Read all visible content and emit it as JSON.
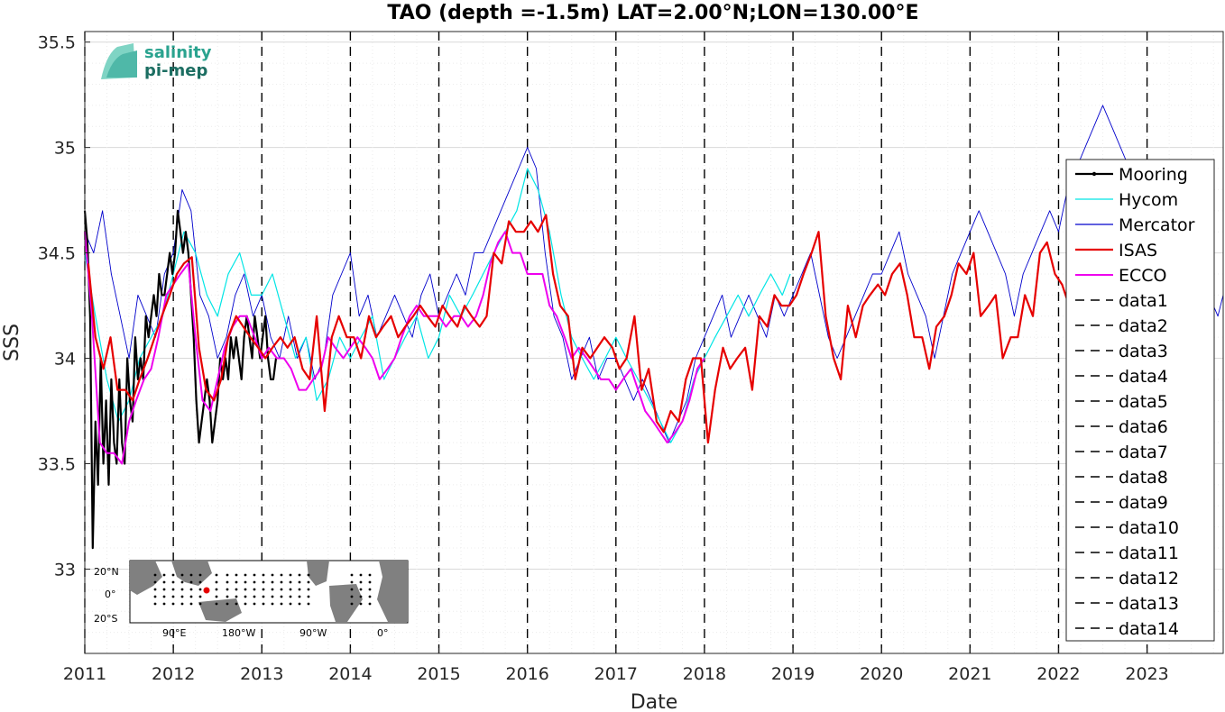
{
  "chart_data": {
    "type": "line",
    "title": "TAO (depth =-1.5m) LAT=2.00°N;LON=130.00°E",
    "xlabel": "Date",
    "ylabel": "SSS",
    "xlim": [
      2011.0,
      2023.86
    ],
    "ylim": [
      32.6,
      35.55
    ],
    "grid": "on",
    "legend_position": "right",
    "x_ticks": [
      2011,
      2012,
      2013,
      2014,
      2015,
      2016,
      2017,
      2018,
      2019,
      2020,
      2021,
      2022,
      2023
    ],
    "x_tick_labels": [
      "2011",
      "2012",
      "2013",
      "2014",
      "2015",
      "2016",
      "2017",
      "2018",
      "2019",
      "2020",
      "2021",
      "2022",
      "2023"
    ],
    "y_ticks": [
      33,
      33.5,
      34,
      34.5,
      35,
      35.5
    ],
    "y_tick_labels": [
      "33",
      "33.5",
      "34",
      "34.5",
      "35",
      "35.5"
    ],
    "vertical_lines": [
      2011,
      2012,
      2013,
      2014,
      2015,
      2016,
      2017,
      2018,
      2019,
      2020,
      2021,
      2022,
      2023
    ],
    "series": [
      {
        "name": "Mooring",
        "color": "#000000",
        "width": 2.2,
        "x": [
          2011.0,
          2011.03,
          2011.06,
          2011.09,
          2011.12,
          2011.15,
          2011.18,
          2011.21,
          2011.24,
          2011.27,
          2011.3,
          2011.33,
          2011.36,
          2011.39,
          2011.42,
          2011.45,
          2011.48,
          2011.51,
          2011.54,
          2011.57,
          2011.6,
          2011.63,
          2011.66,
          2011.69,
          2011.72,
          2011.75,
          2011.78,
          2011.81,
          2011.84,
          2011.87,
          2011.9,
          2011.93,
          2011.96,
          2011.99,
          2012.02,
          2012.05,
          2012.08,
          2012.11,
          2012.14,
          2012.17,
          2012.2,
          2012.23,
          2012.26,
          2012.29,
          2012.32,
          2012.35,
          2012.38,
          2012.41,
          2012.44,
          2012.47,
          2012.5,
          2012.53,
          2012.56,
          2012.59,
          2012.62,
          2012.65,
          2012.68,
          2012.71,
          2012.74,
          2012.77,
          2012.8,
          2012.83,
          2012.86,
          2012.89,
          2012.92,
          2012.95,
          2012.98,
          2013.01,
          2013.04,
          2013.07,
          2013.1,
          2013.13,
          2013.16
        ],
        "y": [
          34.7,
          34.55,
          34.2,
          33.1,
          33.7,
          33.4,
          34.0,
          33.5,
          33.8,
          33.4,
          33.9,
          33.6,
          33.5,
          33.9,
          33.6,
          33.5,
          34.0,
          33.8,
          33.7,
          34.1,
          33.9,
          34.0,
          33.9,
          34.2,
          34.1,
          34.2,
          34.3,
          34.2,
          34.4,
          34.3,
          34.3,
          34.4,
          34.5,
          34.4,
          34.5,
          34.7,
          34.6,
          34.5,
          34.6,
          34.5,
          34.3,
          34.1,
          33.8,
          33.6,
          33.7,
          33.8,
          33.9,
          33.8,
          33.6,
          33.7,
          33.8,
          34.0,
          33.9,
          34.0,
          33.9,
          34.1,
          34.0,
          34.1,
          34.0,
          33.9,
          34.1,
          34.2,
          34.1,
          34.0,
          34.2,
          34.1,
          34.0,
          34.1,
          34.2,
          34.0,
          33.9,
          33.9,
          34.0
        ]
      },
      {
        "name": "Hycom",
        "color": "#00e5e5",
        "width": 1.2,
        "x": [
          2011.0,
          2011.12,
          2011.25,
          2011.38,
          2011.5,
          2011.62,
          2011.75,
          2011.88,
          2012.0,
          2012.12,
          2012.25,
          2012.38,
          2012.5,
          2012.62,
          2012.75,
          2012.88,
          2013.0,
          2013.12,
          2013.25,
          2013.38,
          2013.5,
          2013.62,
          2013.75,
          2013.88,
          2014.0,
          2014.12,
          2014.25,
          2014.38,
          2014.5,
          2014.62,
          2014.75,
          2014.88,
          2015.0,
          2015.12,
          2015.25,
          2015.38,
          2015.5,
          2015.62,
          2015.75,
          2015.88,
          2016.0,
          2016.12,
          2016.25,
          2016.38,
          2016.5,
          2016.62,
          2016.75,
          2016.88,
          2017.0,
          2017.12,
          2017.25,
          2017.38,
          2017.5,
          2017.62,
          2017.75,
          2017.88,
          2018.0,
          2018.12,
          2018.25,
          2018.38,
          2018.5,
          2018.62,
          2018.75,
          2018.88,
          2018.97
        ],
        "y": [
          34.5,
          34.2,
          33.9,
          33.7,
          33.8,
          34.0,
          34.1,
          34.2,
          34.4,
          34.6,
          34.5,
          34.3,
          34.2,
          34.4,
          34.5,
          34.3,
          34.3,
          34.4,
          34.2,
          34.0,
          34.1,
          33.8,
          33.9,
          34.1,
          34.0,
          34.1,
          34.2,
          33.9,
          34.0,
          34.1,
          34.2,
          34.0,
          34.1,
          34.3,
          34.2,
          34.3,
          34.4,
          34.5,
          34.6,
          34.7,
          34.9,
          34.8,
          34.6,
          34.3,
          34.1,
          34.0,
          33.9,
          34.0,
          34.1,
          34.0,
          33.9,
          33.8,
          33.7,
          33.6,
          33.7,
          33.9,
          34.0,
          34.1,
          34.2,
          34.3,
          34.2,
          34.3,
          34.4,
          34.3,
          34.4
        ]
      },
      {
        "name": "Mercator",
        "color": "#0000cc",
        "width": 0.9,
        "x": [
          2011.0,
          2011.1,
          2011.2,
          2011.3,
          2011.4,
          2011.5,
          2011.6,
          2011.7,
          2011.8,
          2011.9,
          2012.0,
          2012.1,
          2012.2,
          2012.3,
          2012.4,
          2012.5,
          2012.6,
          2012.7,
          2012.8,
          2012.9,
          2013.0,
          2013.1,
          2013.2,
          2013.3,
          2013.4,
          2013.5,
          2013.6,
          2013.7,
          2013.8,
          2013.9,
          2014.0,
          2014.1,
          2014.2,
          2014.3,
          2014.4,
          2014.5,
          2014.6,
          2014.7,
          2014.8,
          2014.9,
          2015.0,
          2015.1,
          2015.2,
          2015.3,
          2015.4,
          2015.5,
          2015.6,
          2015.7,
          2015.8,
          2015.9,
          2016.0,
          2016.1,
          2016.2,
          2016.3,
          2016.4,
          2016.5,
          2016.6,
          2016.7,
          2016.8,
          2016.9,
          2017.0,
          2017.1,
          2017.2,
          2017.3,
          2017.4,
          2017.5,
          2017.6,
          2017.7,
          2017.8,
          2017.9,
          2018.0,
          2018.1,
          2018.2,
          2018.3,
          2018.4,
          2018.5,
          2018.6,
          2018.7,
          2018.8,
          2018.9,
          2019.0,
          2019.1,
          2019.2,
          2019.3,
          2019.4,
          2019.5,
          2019.6,
          2019.7,
          2019.8,
          2019.9,
          2020.0,
          2020.1,
          2020.2,
          2020.3,
          2020.4,
          2020.5,
          2020.6,
          2020.7,
          2020.8,
          2020.9,
          2021.0,
          2021.1,
          2021.2,
          2021.3,
          2021.4,
          2021.5,
          2021.6,
          2021.7,
          2021.8,
          2021.9,
          2022.0,
          2022.1,
          2022.2,
          2022.3,
          2022.4,
          2022.5,
          2022.6,
          2022.7,
          2022.8,
          2022.9,
          2023.0,
          2023.1,
          2023.2,
          2023.3,
          2023.4,
          2023.5,
          2023.6,
          2023.7,
          2023.8,
          2023.86
        ],
        "y": [
          34.6,
          34.5,
          34.7,
          34.4,
          34.2,
          34.0,
          34.3,
          34.2,
          34.1,
          34.4,
          34.5,
          34.8,
          34.7,
          34.3,
          34.2,
          34.0,
          34.1,
          34.3,
          34.4,
          34.2,
          34.3,
          34.1,
          34.0,
          34.2,
          34.0,
          34.1,
          33.9,
          34.0,
          34.3,
          34.4,
          34.5,
          34.2,
          34.3,
          34.1,
          34.2,
          34.3,
          34.2,
          34.1,
          34.3,
          34.4,
          34.2,
          34.3,
          34.4,
          34.3,
          34.5,
          34.5,
          34.6,
          34.7,
          34.8,
          34.9,
          35.0,
          34.9,
          34.5,
          34.2,
          34.1,
          33.9,
          34.0,
          34.1,
          33.9,
          34.0,
          34.0,
          33.9,
          33.8,
          33.9,
          33.8,
          33.7,
          33.6,
          33.7,
          33.8,
          34.0,
          34.1,
          34.2,
          34.3,
          34.1,
          34.2,
          34.3,
          34.2,
          34.1,
          34.3,
          34.2,
          34.3,
          34.4,
          34.5,
          34.3,
          34.1,
          34.0,
          34.1,
          34.2,
          34.3,
          34.4,
          34.4,
          34.5,
          34.6,
          34.4,
          34.3,
          34.2,
          34.0,
          34.2,
          34.4,
          34.5,
          34.6,
          34.7,
          34.6,
          34.5,
          34.4,
          34.2,
          34.4,
          34.5,
          34.6,
          34.7,
          34.6,
          34.8,
          34.9,
          35.0,
          35.1,
          35.2,
          35.1,
          35.0,
          34.9,
          34.8,
          34.7,
          34.8,
          34.9,
          34.5,
          34.4,
          34.3,
          34.2,
          34.3,
          34.2,
          34.3
        ]
      },
      {
        "name": "ISAS",
        "color": "#e60000",
        "width": 2.2,
        "x": [
          2011.04,
          2011.12,
          2011.21,
          2011.29,
          2011.37,
          2011.46,
          2011.54,
          2011.62,
          2011.71,
          2011.79,
          2011.87,
          2011.96,
          2012.04,
          2012.12,
          2012.21,
          2012.29,
          2012.37,
          2012.46,
          2012.54,
          2012.62,
          2012.71,
          2012.79,
          2012.87,
          2012.96,
          2013.04,
          2013.12,
          2013.21,
          2013.29,
          2013.37,
          2013.46,
          2013.54,
          2013.62,
          2013.71,
          2013.79,
          2013.87,
          2013.96,
          2014.04,
          2014.12,
          2014.21,
          2014.29,
          2014.37,
          2014.46,
          2014.54,
          2014.62,
          2014.71,
          2014.79,
          2014.87,
          2014.96,
          2015.04,
          2015.12,
          2015.21,
          2015.29,
          2015.37,
          2015.46,
          2015.54,
          2015.62,
          2015.71,
          2015.79,
          2015.87,
          2015.96,
          2016.04,
          2016.12,
          2016.21,
          2016.29,
          2016.37,
          2016.46,
          2016.54,
          2016.62,
          2016.71,
          2016.79,
          2016.87,
          2016.96,
          2017.04,
          2017.12,
          2017.21,
          2017.29,
          2017.37,
          2017.46,
          2017.54,
          2017.62,
          2017.71,
          2017.79,
          2017.87,
          2017.96,
          2018.04,
          2018.12,
          2018.21,
          2018.29,
          2018.37,
          2018.46,
          2018.54,
          2018.62,
          2018.71,
          2018.79,
          2018.87,
          2018.96,
          2019.04,
          2019.12,
          2019.21,
          2019.29,
          2019.37,
          2019.46,
          2019.54,
          2019.62,
          2019.71,
          2019.79,
          2019.87,
          2019.96,
          2020.04,
          2020.12,
          2020.21,
          2020.29,
          2020.37,
          2020.46,
          2020.54,
          2020.62,
          2020.71,
          2020.79,
          2020.87,
          2020.96,
          2021.04,
          2021.12,
          2021.21,
          2021.29,
          2021.37,
          2021.46,
          2021.54,
          2021.62,
          2021.71,
          2021.79,
          2021.87,
          2021.96,
          2022.04,
          2022.12
        ],
        "y": [
          34.45,
          34.1,
          33.95,
          34.1,
          33.85,
          33.85,
          33.8,
          33.9,
          34.0,
          34.1,
          34.2,
          34.3,
          34.4,
          34.45,
          34.48,
          34.05,
          33.85,
          33.8,
          33.9,
          34.1,
          34.2,
          34.15,
          34.1,
          34.05,
          34.0,
          34.05,
          34.1,
          34.05,
          34.1,
          33.95,
          33.9,
          34.2,
          33.75,
          34.1,
          34.2,
          34.1,
          34.1,
          34.0,
          34.2,
          34.1,
          34.15,
          34.2,
          34.1,
          34.15,
          34.2,
          34.25,
          34.2,
          34.15,
          34.25,
          34.2,
          34.15,
          34.25,
          34.2,
          34.15,
          34.2,
          34.5,
          34.45,
          34.65,
          34.6,
          34.6,
          34.65,
          34.6,
          34.68,
          34.4,
          34.25,
          34.2,
          33.9,
          34.05,
          34.0,
          34.05,
          34.1,
          34.05,
          33.95,
          34.0,
          34.2,
          33.85,
          33.95,
          33.7,
          33.65,
          33.75,
          33.7,
          33.9,
          34.0,
          34.0,
          33.6,
          33.85,
          34.05,
          33.95,
          34.0,
          34.05,
          33.85,
          34.2,
          34.15,
          34.3,
          34.25,
          34.25,
          34.3,
          34.4,
          34.5,
          34.6,
          34.2,
          34.0,
          33.9,
          34.25,
          34.1,
          34.25,
          34.3,
          34.35,
          34.3,
          34.4,
          34.45,
          34.3,
          34.1,
          34.1,
          33.95,
          34.15,
          34.2,
          34.3,
          34.45,
          34.4,
          34.5,
          34.2,
          34.25,
          34.3,
          34.0,
          34.1,
          34.1,
          34.3,
          34.2,
          34.5,
          34.55,
          34.4,
          34.35,
          34.25
        ]
      },
      {
        "name": "ECCO",
        "color": "#ee00ee",
        "width": 2.0,
        "x": [
          2011.0,
          2011.08,
          2011.17,
          2011.25,
          2011.33,
          2011.42,
          2011.5,
          2011.58,
          2011.67,
          2011.75,
          2011.83,
          2011.92,
          2012.0,
          2012.08,
          2012.17,
          2012.25,
          2012.33,
          2012.42,
          2012.5,
          2012.58,
          2012.67,
          2012.75,
          2012.83,
          2012.92,
          2013.0,
          2013.08,
          2013.17,
          2013.25,
          2013.33,
          2013.42,
          2013.5,
          2013.58,
          2013.67,
          2013.75,
          2013.83,
          2013.92,
          2014.0,
          2014.08,
          2014.17,
          2014.25,
          2014.33,
          2014.42,
          2014.5,
          2014.58,
          2014.67,
          2014.75,
          2014.83,
          2014.92,
          2015.0,
          2015.08,
          2015.17,
          2015.25,
          2015.33,
          2015.42,
          2015.5,
          2015.58,
          2015.67,
          2015.75,
          2015.83,
          2015.92,
          2016.0,
          2016.08,
          2016.17,
          2016.25,
          2016.33,
          2016.42,
          2016.5,
          2016.58,
          2016.67,
          2016.75,
          2016.83,
          2016.92,
          2017.0,
          2017.08,
          2017.17,
          2017.25,
          2017.33,
          2017.42,
          2017.5,
          2017.58,
          2017.67,
          2017.75,
          2017.83,
          2017.92,
          2018.0
        ],
        "y": [
          34.6,
          34.2,
          33.6,
          33.55,
          33.55,
          33.5,
          33.7,
          33.8,
          33.9,
          33.95,
          34.1,
          34.3,
          34.35,
          34.4,
          34.45,
          34.1,
          33.8,
          33.75,
          33.9,
          34.05,
          34.15,
          34.2,
          34.2,
          34.1,
          34.0,
          34.05,
          34.0,
          34.0,
          33.95,
          33.85,
          33.85,
          33.9,
          33.95,
          34.1,
          34.05,
          34.0,
          34.05,
          34.1,
          34.05,
          34.0,
          33.9,
          33.95,
          34.0,
          34.1,
          34.2,
          34.25,
          34.2,
          34.2,
          34.2,
          34.15,
          34.2,
          34.2,
          34.15,
          34.2,
          34.3,
          34.45,
          34.55,
          34.6,
          34.5,
          34.5,
          34.4,
          34.4,
          34.4,
          34.25,
          34.2,
          34.1,
          34.0,
          34.05,
          34.0,
          33.95,
          33.9,
          33.9,
          33.85,
          33.9,
          33.95,
          33.85,
          33.75,
          33.7,
          33.65,
          33.6,
          33.65,
          33.7,
          33.8,
          33.95,
          34.0
        ]
      }
    ],
    "legend": [
      "Mooring",
      "Hycom",
      "Mercator",
      "ISAS",
      "ECCO",
      "data1",
      "data2",
      "data3",
      "data4",
      "data5",
      "data6",
      "data7",
      "data8",
      "data9",
      "data10",
      "data11",
      "data12",
      "data13",
      "data14"
    ]
  },
  "logo": {
    "line1": "salinity",
    "line2": "pi-mep"
  },
  "inset_map": {
    "lat_labels": [
      "20°N",
      "0°",
      "20°S"
    ],
    "lon_labels": [
      "90°E",
      "180°W",
      "90°W",
      "0°"
    ]
  }
}
